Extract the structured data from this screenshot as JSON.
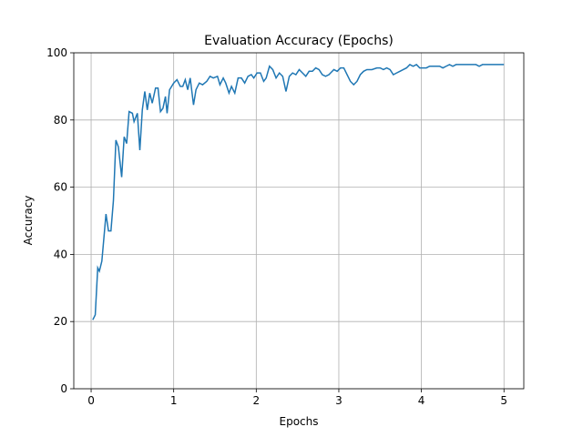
{
  "chart_data": {
    "type": "line",
    "title": "Evaluation Accuracy (Epochs)",
    "x_label": "Epochs",
    "y_label": "Accuracy",
    "xlim": [
      -0.21,
      5.24
    ],
    "ylim": [
      0,
      100
    ],
    "xticks": [
      0,
      1,
      2,
      3,
      4,
      5
    ],
    "yticks": [
      0,
      20,
      40,
      60,
      80,
      100
    ],
    "grid": true,
    "series": [
      {
        "color": "#1f77b4",
        "x": [
          0.02,
          0.05,
          0.08,
          0.1,
          0.13,
          0.18,
          0.21,
          0.24,
          0.27,
          0.3,
          0.33,
          0.37,
          0.4,
          0.43,
          0.46,
          0.5,
          0.52,
          0.56,
          0.59,
          0.62,
          0.65,
          0.68,
          0.71,
          0.74,
          0.78,
          0.81,
          0.84,
          0.87,
          0.9,
          0.92,
          0.95,
          1.0,
          1.04,
          1.08,
          1.11,
          1.14,
          1.17,
          1.2,
          1.24,
          1.27,
          1.31,
          1.35,
          1.4,
          1.44,
          1.48,
          1.53,
          1.56,
          1.6,
          1.63,
          1.67,
          1.7,
          1.74,
          1.78,
          1.82,
          1.86,
          1.9,
          1.94,
          1.97,
          2.01,
          2.05,
          2.09,
          2.12,
          2.16,
          2.2,
          2.24,
          2.28,
          2.32,
          2.36,
          2.4,
          2.44,
          2.48,
          2.52,
          2.56,
          2.6,
          2.64,
          2.68,
          2.72,
          2.76,
          2.8,
          2.84,
          2.88,
          2.9,
          2.94,
          2.98,
          3.02,
          3.06,
          3.1,
          3.14,
          3.18,
          3.22,
          3.26,
          3.3,
          3.34,
          3.4,
          3.46,
          3.5,
          3.54,
          3.58,
          3.62,
          3.66,
          3.7,
          3.74,
          3.78,
          3.82,
          3.86,
          3.9,
          3.94,
          3.98,
          4.02,
          4.06,
          4.1,
          4.14,
          4.18,
          4.22,
          4.26,
          4.3,
          4.34,
          4.38,
          4.42,
          4.46,
          4.5,
          4.56,
          4.6,
          4.66,
          4.7,
          4.74,
          4.8,
          4.86,
          4.92,
          5.0
        ],
        "values": [
          20.5,
          22,
          36,
          35,
          38,
          52,
          47,
          47,
          56,
          74,
          72,
          63,
          75,
          73,
          82.5,
          82,
          79.5,
          82,
          71,
          83,
          88.5,
          83,
          88,
          85,
          89.5,
          89.5,
          82.5,
          83.5,
          87,
          82,
          89,
          91,
          92,
          90,
          90,
          92,
          89,
          92.5,
          84.5,
          89,
          91,
          90.5,
          91.5,
          93,
          92.5,
          93,
          90.5,
          92.5,
          91,
          88,
          90,
          88,
          92.5,
          92.5,
          91,
          93,
          93.5,
          92.5,
          94,
          94,
          91.5,
          92.5,
          96,
          95,
          92.5,
          94,
          93,
          88.5,
          93,
          94,
          93.5,
          95,
          94,
          93,
          94.5,
          94.5,
          95.5,
          95,
          93.5,
          93,
          93.5,
          94,
          95,
          94.5,
          95.5,
          95.5,
          93.5,
          91.5,
          90.5,
          91.5,
          93.5,
          94.5,
          95,
          95,
          95.5,
          95.5,
          95,
          95.5,
          95,
          93.5,
          94,
          94.5,
          95,
          95.5,
          96.5,
          96,
          96.5,
          95.5,
          95.5,
          95.5,
          96,
          96,
          96,
          96,
          95.5,
          96,
          96.5,
          96,
          96.5,
          96.5,
          96.5,
          96.5,
          96.5,
          96.5,
          96,
          96.5,
          96.5,
          96.5,
          96.5,
          96.5
        ]
      }
    ]
  }
}
